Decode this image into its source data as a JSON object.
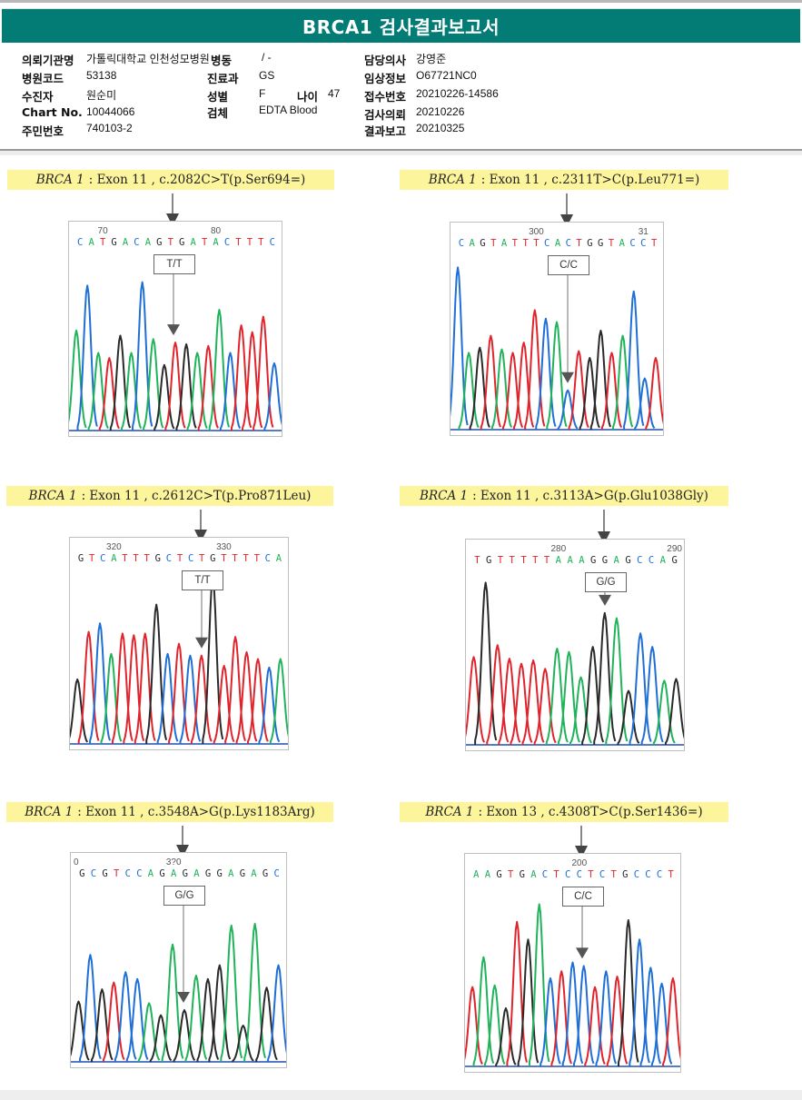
{
  "report": {
    "title": "BRCA1 검사결과보고서"
  },
  "patient_info": {
    "left": [
      {
        "label": "의뢰기관명",
        "value": "가톨릭대학교 인천성모병원"
      },
      {
        "label": "병원코드",
        "value": "53138"
      },
      {
        "label": "수진자",
        "value": "원순미"
      },
      {
        "label": "Chart No.",
        "value": "10044066"
      },
      {
        "label": "주민번호",
        "value": "740103-2"
      }
    ],
    "middle": [
      {
        "label": "병동",
        "value": "/ -"
      },
      {
        "label": "진료과",
        "value": "GS"
      },
      {
        "label": "성별",
        "value": "F"
      },
      {
        "label": "검체",
        "value": "EDTA Blood"
      }
    ],
    "age": {
      "label": "나이",
      "value": "47"
    },
    "right": [
      {
        "label": "담당의사",
        "value": "강영준"
      },
      {
        "label": "임상정보",
        "value": "O67721NC0"
      },
      {
        "label": "접수번호",
        "value": "20210226-14586"
      },
      {
        "label": "검사의뢰",
        "value": "20210226"
      },
      {
        "label": "결과보고",
        "value": "20210325"
      }
    ]
  },
  "base_colors": {
    "A": "#1fb35a",
    "C": "#1f6fd6",
    "G": "#2a2a2a",
    "T": "#e0242c"
  },
  "variants": [
    {
      "gene": "BRCA 1",
      "detail": ": Exon 11 , c.2082C>T(p.Ser694=)",
      "genotype": "T/T",
      "position_labels": [
        {
          "text": "70",
          "base_index": 2
        },
        {
          "text": "80",
          "base_index": 12
        }
      ],
      "sequence": "CATGACAGTGATACTTTC",
      "variant_index": 9,
      "peaks": [
        [
          "A",
          0.58
        ],
        [
          "C",
          0.84
        ],
        [
          "A",
          0.45
        ],
        [
          "T",
          0.42
        ],
        [
          "G",
          0.55
        ],
        [
          "A",
          0.45
        ],
        [
          "C",
          0.86
        ],
        [
          "A",
          0.53
        ],
        [
          "G",
          0.38
        ],
        [
          "T",
          0.51
        ],
        [
          "G",
          0.5
        ],
        [
          "A",
          0.45
        ],
        [
          "T",
          0.49
        ],
        [
          "A",
          0.7
        ],
        [
          "C",
          0.45
        ],
        [
          "T",
          0.61
        ],
        [
          "T",
          0.57
        ],
        [
          "T",
          0.66
        ],
        [
          "C",
          0.39
        ]
      ]
    },
    {
      "gene": "BRCA 1",
      "detail": ": Exon 11 , c.2311T>C(p.Leu771=)",
      "genotype": "C/C",
      "position_labels": [
        {
          "text": "300",
          "base_index": 7
        },
        {
          "text": "31",
          "base_index": 17
        }
      ],
      "sequence": "CAGTATTTCACTGGTACCT",
      "variant_index": 10,
      "peaks": [
        [
          "C",
          0.95
        ],
        [
          "A",
          0.45
        ],
        [
          "G",
          0.48
        ],
        [
          "T",
          0.55
        ],
        [
          "A",
          0.47
        ],
        [
          "T",
          0.45
        ],
        [
          "T",
          0.51
        ],
        [
          "T",
          0.7
        ],
        [
          "C",
          0.65
        ],
        [
          "A",
          0.63
        ],
        [
          "C",
          0.23
        ],
        [
          "T",
          0.46
        ],
        [
          "G",
          0.42
        ],
        [
          "G",
          0.58
        ],
        [
          "T",
          0.45
        ],
        [
          "A",
          0.55
        ],
        [
          "C",
          0.81
        ],
        [
          "C",
          0.3
        ],
        [
          "T",
          0.42
        ]
      ]
    },
    {
      "gene": "BRCA 1",
      "detail": ": Exon 11 , c.2612C>T(p.Pro871Leu)",
      "genotype": "T/T",
      "position_labels": [
        {
          "text": "320",
          "base_index": 3
        },
        {
          "text": "330",
          "base_index": 13
        }
      ],
      "sequence": "GTCATTTGCTCTGTTTTCA",
      "variant_index": 10,
      "peaks": [
        [
          "G",
          0.38
        ],
        [
          "T",
          0.66
        ],
        [
          "C",
          0.71
        ],
        [
          "A",
          0.53
        ],
        [
          "T",
          0.65
        ],
        [
          "T",
          0.64
        ],
        [
          "T",
          0.65
        ],
        [
          "G",
          0.82
        ],
        [
          "C",
          0.53
        ],
        [
          "T",
          0.59
        ],
        [
          "C",
          0.52
        ],
        [
          "T",
          0.52
        ],
        [
          "G",
          0.98
        ],
        [
          "T",
          0.46
        ],
        [
          "T",
          0.63
        ],
        [
          "T",
          0.54
        ],
        [
          "T",
          0.5
        ],
        [
          "C",
          0.45
        ],
        [
          "A",
          0.5
        ]
      ]
    },
    {
      "gene": "BRCA 1",
      "detail": ": Exon 11 , c.3113A>G(p.Glu1038Gly)",
      "genotype": "G/G",
      "position_labels": [
        {
          "text": "280",
          "base_index": 7
        },
        {
          "text": "290",
          "base_index": 17
        }
      ],
      "sequence": "TGTTTTTAAAGGAGCCAG",
      "variant_index": 11,
      "peaks": [
        [
          "T",
          0.52
        ],
        [
          "G",
          0.96
        ],
        [
          "T",
          0.59
        ],
        [
          "T",
          0.51
        ],
        [
          "T",
          0.48
        ],
        [
          "T",
          0.5
        ],
        [
          "T",
          0.45
        ],
        [
          "A",
          0.57
        ],
        [
          "A",
          0.55
        ],
        [
          "A",
          0.4
        ],
        [
          "G",
          0.58
        ],
        [
          "G",
          0.78
        ],
        [
          "A",
          0.75
        ],
        [
          "G",
          0.32
        ],
        [
          "C",
          0.66
        ],
        [
          "C",
          0.58
        ],
        [
          "A",
          0.38
        ],
        [
          "G",
          0.39
        ]
      ]
    },
    {
      "gene": "BRCA 1",
      "detail": ": Exon 11 , c.3548A>G(p.Lys1183Arg)",
      "genotype": "G/G",
      "position_labels": [
        {
          "text": "0",
          "base_index": -1
        },
        {
          "text": "3?0",
          "base_index": 8
        }
      ],
      "sequence": "GCGTCCAGAGAGGAGAGC",
      "variant_index": 9,
      "peaks": [
        [
          "G",
          0.35
        ],
        [
          "C",
          0.62
        ],
        [
          "G",
          0.42
        ],
        [
          "T",
          0.46
        ],
        [
          "C",
          0.52
        ],
        [
          "C",
          0.48
        ],
        [
          "A",
          0.34
        ],
        [
          "G",
          0.27
        ],
        [
          "A",
          0.68
        ],
        [
          "G",
          0.3
        ],
        [
          "A",
          0.5
        ],
        [
          "G",
          0.48
        ],
        [
          "G",
          0.56
        ],
        [
          "A",
          0.79
        ],
        [
          "G",
          0.21
        ],
        [
          "A",
          0.8
        ],
        [
          "G",
          0.43
        ],
        [
          "C",
          0.56
        ]
      ]
    },
    {
      "gene": "BRCA 1",
      "detail": ": Exon 13 , c.4308T>C(p.Ser1436=)",
      "genotype": "C/C",
      "position_labels": [
        {
          "text": "200",
          "base_index": 9
        }
      ],
      "sequence": "AAGTGACTCCTCTGCCCT",
      "variant_index": 10,
      "peaks": [
        [
          "T",
          0.45
        ],
        [
          "A",
          0.62
        ],
        [
          "A",
          0.46
        ],
        [
          "G",
          0.33
        ],
        [
          "T",
          0.82
        ],
        [
          "G",
          0.72
        ],
        [
          "A",
          0.92
        ],
        [
          "C",
          0.5
        ],
        [
          "T",
          0.54
        ],
        [
          "C",
          0.59
        ],
        [
          "C",
          0.57
        ],
        [
          "T",
          0.45
        ],
        [
          "C",
          0.54
        ],
        [
          "T",
          0.51
        ],
        [
          "G",
          0.83
        ],
        [
          "C",
          0.72
        ],
        [
          "C",
          0.56
        ],
        [
          "C",
          0.47
        ],
        [
          "T",
          0.5
        ]
      ]
    }
  ]
}
